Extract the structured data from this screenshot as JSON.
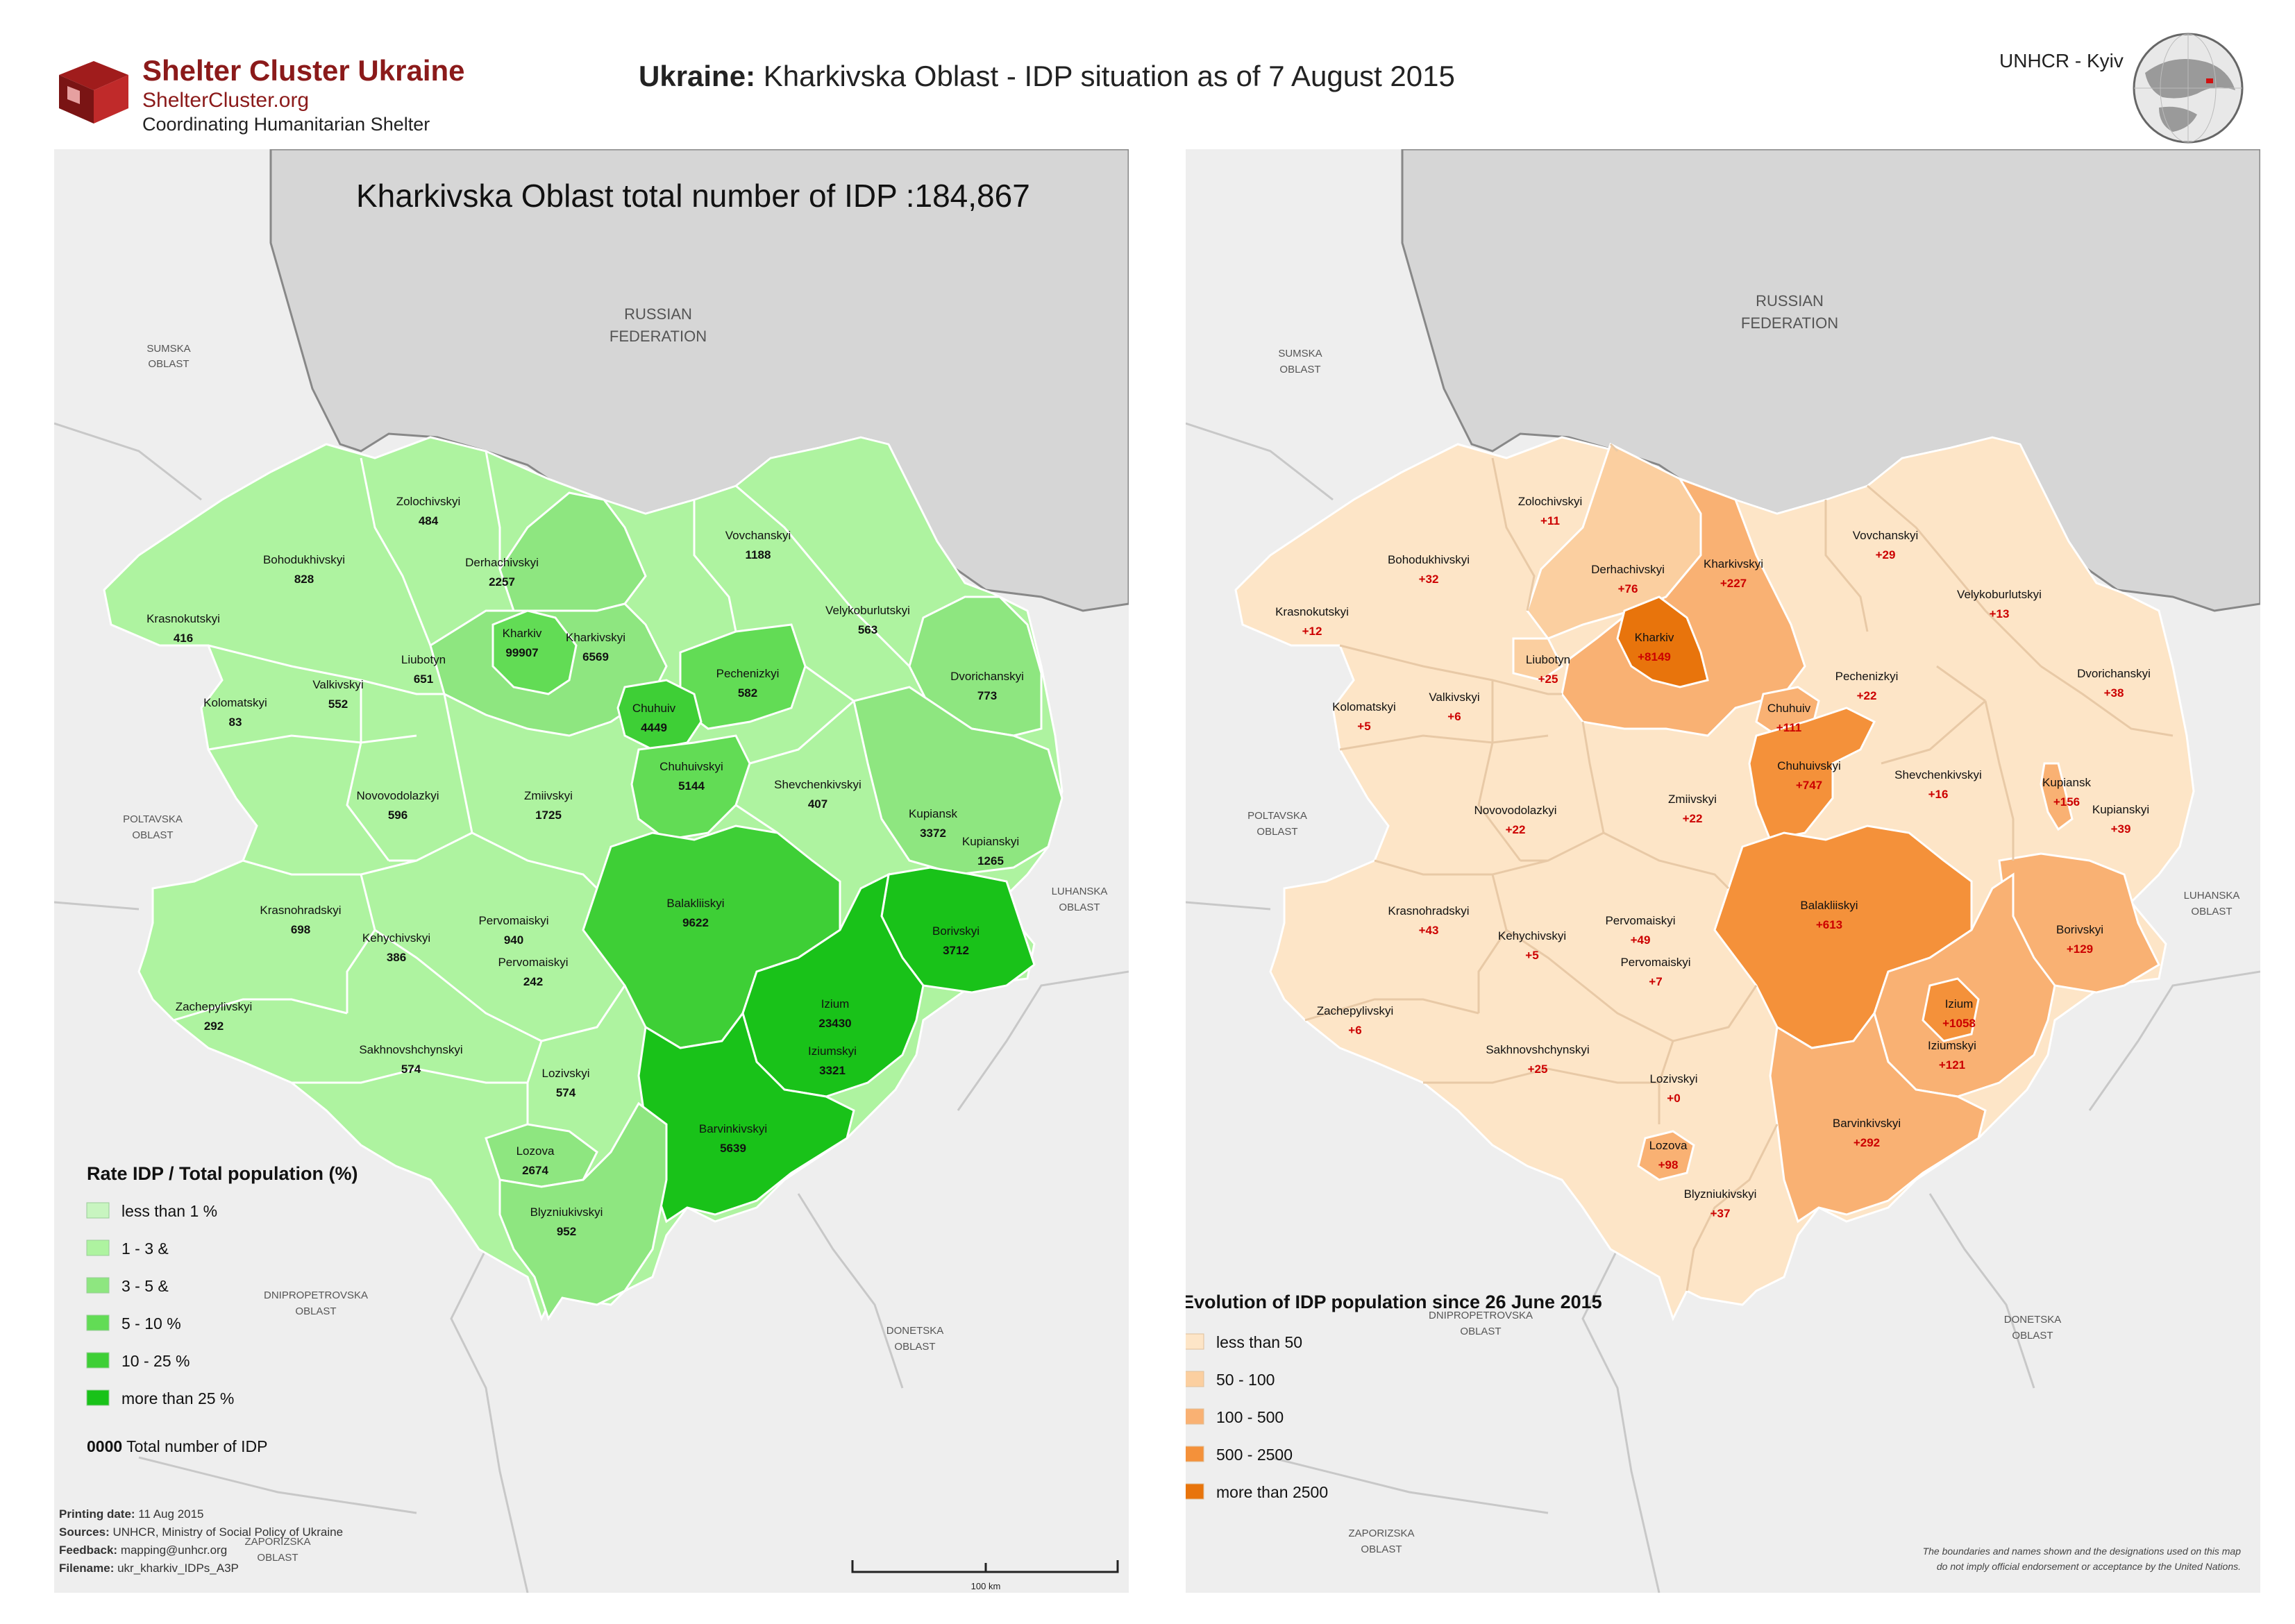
{
  "header": {
    "org_name": "Shelter Cluster Ukraine",
    "org_url": "ShelterCluster.org",
    "org_tagline": "Coordinating Humanitarian Shelter",
    "title_bold": "Ukraine:",
    "title_rest": " Kharkivska Oblast - IDP situation as of 7 August 2015",
    "agency": "UNHCR - Kyiv"
  },
  "left_map": {
    "title": "Kharkivska Oblast total number of IDP :184,867",
    "legend_title": "Rate IDP / Total population (%)",
    "legend": [
      {
        "label": "less than 1 %",
        "color": "#c8f5c0"
      },
      {
        "label": "1 - 3 &",
        "color": "#aef3a0"
      },
      {
        "label": "3 - 5 &",
        "color": "#8ee680"
      },
      {
        "label": "5 - 10 %",
        "color": "#62dc55"
      },
      {
        "label": "10 - 25 %",
        "color": "#3ecf36"
      },
      {
        "label": "more than 25 %",
        "color": "#19c219"
      }
    ],
    "note_bold": "0000",
    "note_text": " Total number of IDP",
    "districts": [
      {
        "name": "Zolochivskyi",
        "value": "484"
      },
      {
        "name": "Bohodukhivskyi",
        "value": "828"
      },
      {
        "name": "Derhachivskyi",
        "value": "2257"
      },
      {
        "name": "Vovchanskyi",
        "value": "1188"
      },
      {
        "name": "Krasnokutskyi",
        "value": "416"
      },
      {
        "name": "Kharkiv",
        "value": "99907"
      },
      {
        "name": "Kharkivskyi",
        "value": "6569"
      },
      {
        "name": "Liubotyn",
        "value": "651"
      },
      {
        "name": "Velykoburlutskyi",
        "value": "563"
      },
      {
        "name": "Kolomatskyi",
        "value": "83"
      },
      {
        "name": "Valkivskyi",
        "value": "552"
      },
      {
        "name": "Pechenizkyi",
        "value": "582"
      },
      {
        "name": "Dvorichanskyi",
        "value": "773"
      },
      {
        "name": "Chuhuiv",
        "value": "4449"
      },
      {
        "name": "Chuhuivskyi",
        "value": "5144"
      },
      {
        "name": "Novovodolazkyi",
        "value": "596"
      },
      {
        "name": "Zmiivskyi",
        "value": "1725"
      },
      {
        "name": "Shevchenkivskyi",
        "value": "407"
      },
      {
        "name": "Kupiansk",
        "value": "3372"
      },
      {
        "name": "Kupianskyi",
        "value": "1265"
      },
      {
        "name": "Krasnohradskyi",
        "value": "698"
      },
      {
        "name": "Balakliiskyi",
        "value": "9622"
      },
      {
        "name": "Borivskyi",
        "value": "3712"
      },
      {
        "name": "Pervomaiskyi",
        "value": "940"
      },
      {
        "name": "Kehychivskyi",
        "value": "386"
      },
      {
        "name": "Pervomaiskyi",
        "value": "242"
      },
      {
        "name": "Zachepylivskyi",
        "value": "292"
      },
      {
        "name": "Izium",
        "value": "23430"
      },
      {
        "name": "Iziumskyi",
        "value": "3321"
      },
      {
        "name": "Sakhnovshchynskyi",
        "value": "574"
      },
      {
        "name": "Lozivskyi",
        "value": "574"
      },
      {
        "name": "Barvinkivskyi",
        "value": "5639"
      },
      {
        "name": "Lozova",
        "value": "2674"
      },
      {
        "name": "Blyzniukivskyi",
        "value": "952"
      }
    ],
    "context": {
      "russia_1": "RUSSIAN",
      "russia_2": "FEDERATION",
      "sumska_1": "SUMSKA",
      "sumska_2": "OBLAST",
      "poltavska_1": "POLTAVSKA",
      "poltavska_2": "OBLAST",
      "luhanska_1": "LUHANSKA",
      "luhanska_2": "OBLAST",
      "dnipro_1": "DNIPROPETROVSKA",
      "dnipro_2": "OBLAST",
      "donetska_1": "DONETSKA",
      "donetska_2": "OBLAST",
      "zaporizska_1": "ZAPORIZSKA",
      "zaporizska_2": "OBLAST"
    },
    "footer": {
      "printing_label": "Printing date:",
      "printing_value": " 11 Aug 2015",
      "sources_label": "Sources:",
      "sources_value": " UNHCR, Ministry of Social Policy of Ukraine",
      "feedback_label": "Feedback:",
      "feedback_value": " mapping@unhcr.org",
      "filename_label": "Filename:",
      "filename_value": " ukr_kharkiv_IDPs_A3P",
      "scale": "100 km"
    }
  },
  "right_map": {
    "legend_title": "Evolution of IDP population since 26 June 2015",
    "legend": [
      {
        "label": "less than 50",
        "color": "#fde5c7"
      },
      {
        "label": "50 - 100",
        "color": "#fbcfa0"
      },
      {
        "label": "100 - 500",
        "color": "#f9b173"
      },
      {
        "label": "500 - 2500",
        "color": "#f4913a"
      },
      {
        "label": "more than 2500",
        "color": "#e8740c"
      }
    ],
    "districts": [
      {
        "name": "Zolochivskyi",
        "value": "+11"
      },
      {
        "name": "Bohodukhivskyi",
        "value": "+32"
      },
      {
        "name": "Derhachivskyi",
        "value": "+76"
      },
      {
        "name": "Kharkivskyi",
        "value": "+227"
      },
      {
        "name": "Vovchanskyi",
        "value": "+29"
      },
      {
        "name": "Krasnokutskyi",
        "value": "+12"
      },
      {
        "name": "Kharkiv",
        "value": "+8149"
      },
      {
        "name": "Velykoburlutskyi",
        "value": "+13"
      },
      {
        "name": "Liubotyn",
        "value": "+25"
      },
      {
        "name": "Valkivskyi",
        "value": "+6"
      },
      {
        "name": "Pechenizkyi",
        "value": "+22"
      },
      {
        "name": "Dvorichanskyi",
        "value": "+38"
      },
      {
        "name": "Kolomatskyi",
        "value": "+5"
      },
      {
        "name": "Chuhuiv",
        "value": "+111"
      },
      {
        "name": "Chuhuivskyi",
        "value": "+747"
      },
      {
        "name": "Shevchenkivskyi",
        "value": "+16"
      },
      {
        "name": "Kupiansk",
        "value": "+156"
      },
      {
        "name": "Zmiivskyi",
        "value": "+22"
      },
      {
        "name": "Novovodolazkyi",
        "value": "+22"
      },
      {
        "name": "Kupianskyi",
        "value": "+39"
      },
      {
        "name": "Krasnohradskyi",
        "value": "+43"
      },
      {
        "name": "Balakliiskyi",
        "value": "+613"
      },
      {
        "name": "Pervomaiskyi",
        "value": "+49"
      },
      {
        "name": "Kehychivskyi",
        "value": "+5"
      },
      {
        "name": "Borivskyi",
        "value": "+129"
      },
      {
        "name": "Pervomaiskyi",
        "value": "+7"
      },
      {
        "name": "Izium",
        "value": "+1058"
      },
      {
        "name": "Zachepylivskyi",
        "value": "+6"
      },
      {
        "name": "Iziumskyi",
        "value": "+121"
      },
      {
        "name": "Sakhnovshchynskyi",
        "value": "+25"
      },
      {
        "name": "Lozivskyi",
        "value": "+0"
      },
      {
        "name": "Barvinkivskyi",
        "value": "+292"
      },
      {
        "name": "Lozova",
        "value": "+98"
      },
      {
        "name": "Blyzniukivskyi",
        "value": "+37"
      }
    ],
    "disclaimer_1": "The boundaries and names shown and the designations used on this map",
    "disclaimer_2": "do not imply official endorsement or acceptance by the United Nations."
  }
}
